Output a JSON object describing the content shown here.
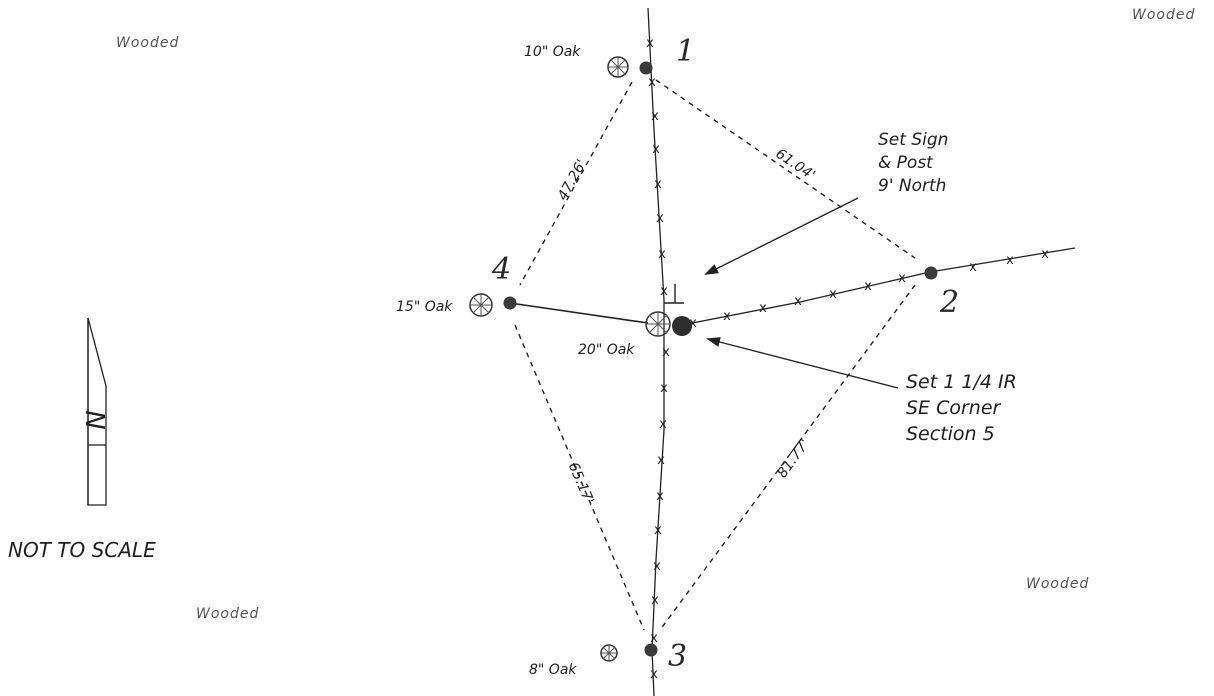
{
  "labels": {
    "wooded_top_left": "Wooded",
    "wooded_top_right": "Wooded",
    "wooded_bottom_right": "Wooded",
    "wooded_bottom_left": "Wooded",
    "not_to_scale": "NOT TO SCALE",
    "north_letter": "N",
    "point_1": "1",
    "point_2": "2",
    "point_3": "3",
    "point_4": "4",
    "tree_1": "10\" Oak",
    "tree_4": "15\" Oak",
    "tree_center": "20\" Oak",
    "tree_3": "8\" Oak",
    "dist_1_4": "47.26'",
    "dist_1_2": "61.04'",
    "dist_4_3": "65.17'",
    "dist_2_3": "81.77'",
    "sign_note": [
      "Set Sign",
      "& Post",
      "9' North"
    ],
    "iron_rod_note": [
      "Set 1 1/4 IR",
      "SE Corner",
      "Section 5"
    ]
  },
  "icons": {
    "tree": "tree-symbol-icon",
    "point": "survey-point-icon",
    "north": "north-arrow-icon",
    "fence": "fence-x-mark"
  },
  "colors": {
    "ink": "#222222",
    "paper": "#ffffff"
  }
}
